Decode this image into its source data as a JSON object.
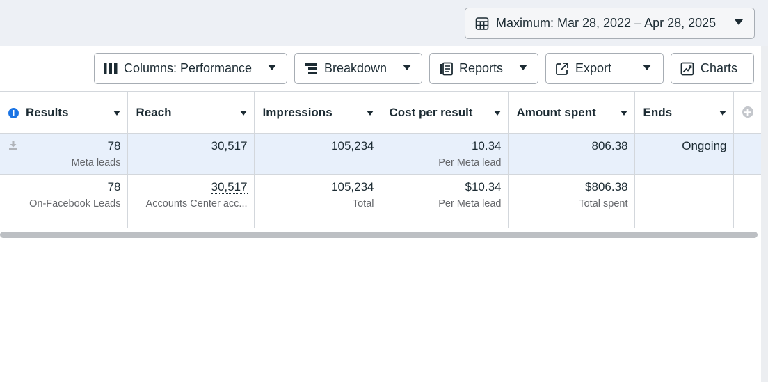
{
  "date_range": {
    "label": "Maximum: Mar 28, 2022 – Apr 28, 2025"
  },
  "toolbar": {
    "columns_label": "Columns: Performance",
    "breakdown_label": "Breakdown",
    "reports_label": "Reports",
    "export_label": "Export",
    "charts_label": "Charts"
  },
  "table": {
    "headers": [
      "Results",
      "Reach",
      "Impressions",
      "Cost per result",
      "Amount spent",
      "Ends"
    ],
    "selected_row": {
      "results": {
        "value": "78",
        "sub": "Meta leads"
      },
      "reach": {
        "value": "30,517"
      },
      "impressions": {
        "value": "105,234"
      },
      "cost_per_result": {
        "value": "10.34",
        "sub": "Per Meta lead"
      },
      "amount_spent": {
        "value": "806.38"
      },
      "ends": {
        "value": "Ongoing"
      }
    },
    "summary_row": {
      "results": {
        "value": "78",
        "sub": "On-Facebook Leads"
      },
      "reach": {
        "value": "30,517",
        "sub": "Accounts Center acc..."
      },
      "impressions": {
        "value": "105,234",
        "sub": "Total"
      },
      "cost_per_result": {
        "value": "$10.34",
        "sub": "Per Meta lead"
      },
      "amount_spent": {
        "value": "$806.38",
        "sub": "Total spent"
      }
    }
  },
  "icons": [
    "calendar-table-icon",
    "columns-icon",
    "breakdown-icon",
    "reports-icon",
    "export-icon",
    "charts-icon",
    "info-icon",
    "download-icon",
    "add-column-icon"
  ],
  "colors": {
    "accent": "#1b74e4",
    "selected_row_bg": "#e8f0fb",
    "topbar_bg": "#edf0f5"
  }
}
